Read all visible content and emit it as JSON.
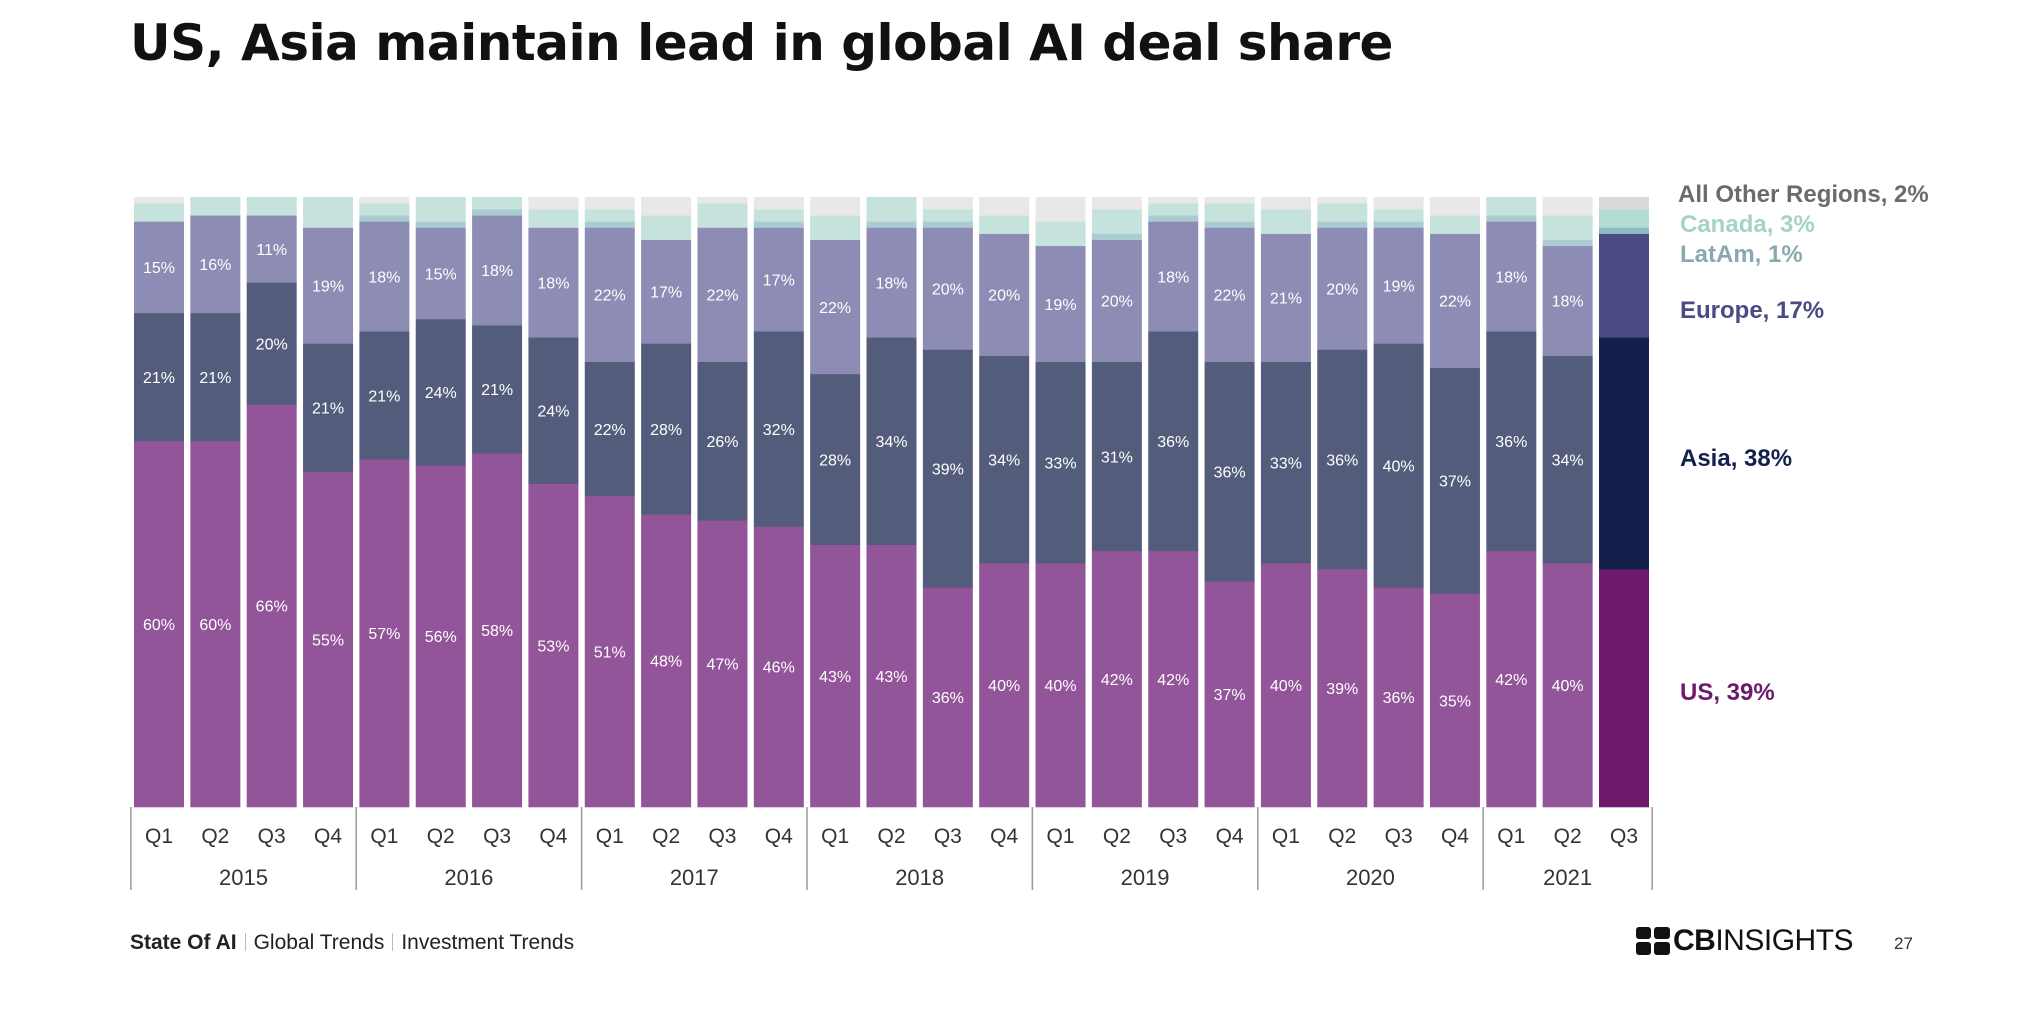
{
  "title": "US, Asia maintain lead in global AI deal share",
  "footer": {
    "section": "State Of AI",
    "crumb1": "Global Trends",
    "crumb2": "Investment Trends"
  },
  "brand": {
    "bold": "CB",
    "light": "INSIGHTS"
  },
  "page_number": "27",
  "colors": {
    "us": "#93559a",
    "asia": "#535c7a",
    "europe": "#8d8cb4",
    "latam": "#a9cbd1",
    "canada": "#c5e2dc",
    "other": "#e8e8e8",
    "us_last": "#6d1a6c",
    "asia_last": "#13204b",
    "europe_last": "#4a4b85",
    "latam_last": "#8fbcc2",
    "canada_last": "#b4dcd4",
    "other_last": "#dadada",
    "label_light": "#ffffff",
    "label_us": "#6d1a6c",
    "label_asia": "#13204b",
    "label_europe": "#4a4b85",
    "label_latam": "#88a9ae",
    "label_canada": "#a5d2ca",
    "label_other": "#6b6b6b"
  },
  "chart_data": {
    "type": "bar",
    "stacked": true,
    "normalized_percent": true,
    "categories": [
      "Q1",
      "Q2",
      "Q3",
      "Q4",
      "Q1",
      "Q2",
      "Q3",
      "Q4",
      "Q1",
      "Q2",
      "Q3",
      "Q4",
      "Q1",
      "Q2",
      "Q3",
      "Q4",
      "Q1",
      "Q2",
      "Q3",
      "Q4",
      "Q1",
      "Q2",
      "Q3",
      "Q4",
      "Q1",
      "Q2",
      "Q3"
    ],
    "year_groups": [
      {
        "label": "2015",
        "quarters": 4
      },
      {
        "label": "2016",
        "quarters": 4
      },
      {
        "label": "2017",
        "quarters": 4
      },
      {
        "label": "2018",
        "quarters": 4
      },
      {
        "label": "2019",
        "quarters": 4
      },
      {
        "label": "2020",
        "quarters": 4
      },
      {
        "label": "2021",
        "quarters": 3
      }
    ],
    "ylim": [
      0,
      100
    ],
    "series": [
      {
        "name": "US",
        "key": "us",
        "values": [
          60,
          60,
          66,
          55,
          57,
          56,
          58,
          53,
          51,
          48,
          47,
          46,
          43,
          43,
          36,
          40,
          40,
          42,
          42,
          37,
          40,
          39,
          36,
          35,
          42,
          40,
          39
        ]
      },
      {
        "name": "Asia",
        "key": "asia",
        "values": [
          21,
          21,
          20,
          21,
          21,
          24,
          21,
          24,
          22,
          28,
          26,
          32,
          28,
          34,
          39,
          34,
          33,
          31,
          36,
          36,
          33,
          36,
          40,
          37,
          36,
          34,
          38
        ]
      },
      {
        "name": "Europe",
        "key": "europe",
        "values": [
          15,
          16,
          11,
          19,
          18,
          15,
          18,
          18,
          22,
          17,
          22,
          17,
          22,
          18,
          20,
          20,
          19,
          20,
          18,
          22,
          21,
          20,
          19,
          22,
          18,
          18,
          17
        ]
      },
      {
        "name": "LatAm",
        "key": "latam",
        "values": [
          0,
          0,
          0,
          0,
          1,
          1,
          1,
          0,
          1,
          0,
          0,
          1,
          0,
          1,
          1,
          0,
          0,
          1,
          1,
          1,
          0,
          1,
          1,
          0,
          1,
          1,
          1
        ]
      },
      {
        "name": "Canada",
        "key": "canada",
        "values": [
          3,
          3,
          3,
          5,
          2,
          4,
          2,
          3,
          2,
          4,
          4,
          2,
          4,
          4,
          2,
          3,
          4,
          4,
          2,
          3,
          4,
          3,
          2,
          3,
          3,
          4,
          3
        ]
      },
      {
        "name": "All Other Regions",
        "key": "other",
        "values": [
          1,
          0,
          0,
          0,
          1,
          0,
          0,
          2,
          2,
          3,
          1,
          2,
          3,
          0,
          2,
          3,
          4,
          2,
          1,
          1,
          2,
          1,
          2,
          3,
          0,
          3,
          2
        ]
      }
    ],
    "last_bar_labels": [
      {
        "key": "other",
        "text": "All Other Regions, 2%"
      },
      {
        "key": "canada",
        "text": "Canada, 3%"
      },
      {
        "key": "latam",
        "text": "LatAm, 1%"
      },
      {
        "key": "europe",
        "text": "Europe, 17%"
      },
      {
        "key": "asia",
        "text": "Asia, 38%"
      },
      {
        "key": "us",
        "text": "US, 39%"
      }
    ],
    "data_labels_on_bars": [
      "us",
      "asia",
      "europe"
    ],
    "grid": false,
    "legend": "right, labels aligned to final bar"
  }
}
